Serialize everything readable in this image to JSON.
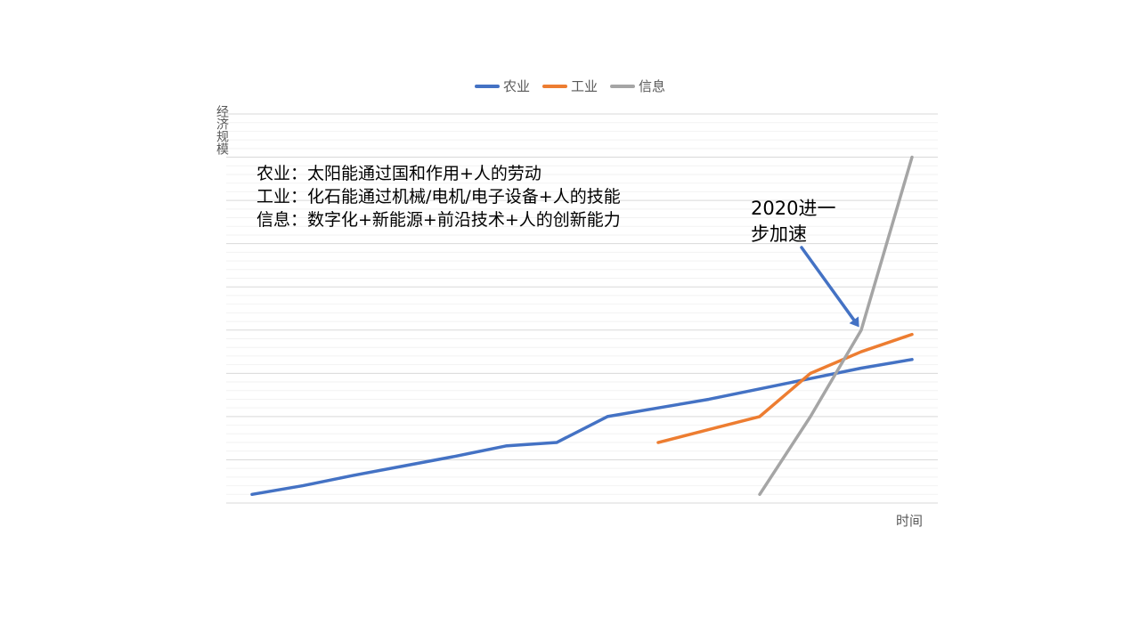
{
  "chart_data": {
    "type": "line",
    "xlabel": "时间",
    "ylabel": "经济规模",
    "grid": true,
    "legend_position": "top-center",
    "x": [
      1,
      2,
      3,
      4,
      5,
      6,
      7,
      8,
      9,
      10,
      11,
      12,
      13,
      14
    ],
    "ylim": [
      0,
      45
    ],
    "series": [
      {
        "name": "农业",
        "color": "#4472C4",
        "values": [
          1,
          2,
          3.2,
          4.3,
          5.4,
          6.6,
          7,
          10,
          11,
          12,
          13.2,
          14.4,
          15.6,
          16.6
        ]
      },
      {
        "name": "工业",
        "color": "#ED7D31",
        "values": [
          null,
          null,
          null,
          null,
          null,
          null,
          null,
          null,
          7,
          8.5,
          10,
          15,
          17.5,
          19.5
        ]
      },
      {
        "name": "信息",
        "color": "#A5A5A5",
        "values": [
          null,
          null,
          null,
          null,
          null,
          null,
          null,
          null,
          null,
          null,
          1,
          10,
          20,
          40
        ]
      }
    ],
    "annotations": {
      "notes": [
        "农业：太阳能通过国和作用+人的劳动",
        "工业：化石能通过机械/电机/电子设备+人的技能",
        "信息：数字化+新能源+前沿技术+人的创新能力"
      ],
      "callout": "2020进一步加速",
      "arrow_color": "#4472C4"
    }
  }
}
